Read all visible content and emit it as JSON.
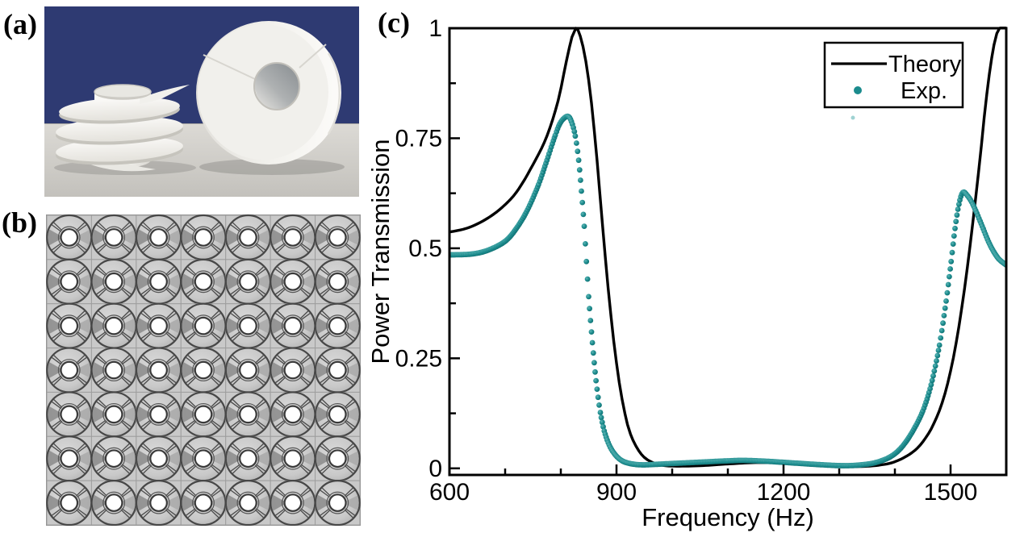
{
  "figure": {
    "background_color": "#ffffff",
    "panel_a": {
      "label": "(a)",
      "kind": "photograph",
      "content": "3D-printed helical resonator and ring resonator on a table",
      "photo_background_color": "#2e3a72",
      "table_color": "#cfcdc8",
      "object_color": "#f2f1ed"
    },
    "panel_b": {
      "label": "(b)",
      "kind": "schematic-array",
      "grid_rows": 7,
      "grid_cols": 7,
      "cell_color": "#c9c9c9",
      "line_color": "#474747",
      "hole_color": "#ffffff"
    },
    "panel_c": {
      "label": "(c)",
      "kind": "chart"
    }
  },
  "chart_data": {
    "type": "line",
    "title": "",
    "xlabel": "Frequency (Hz)",
    "ylabel": "Power Transmission",
    "xlim": [
      600,
      1600
    ],
    "ylim": [
      -0.015,
      1.0
    ],
    "x_major_ticks": [
      600,
      900,
      1200,
      1500
    ],
    "x_minor_ticks": [
      700,
      800,
      1000,
      1100,
      1300,
      1400
    ],
    "y_major_ticks": [
      0,
      0.25,
      0.5,
      0.75,
      1
    ],
    "y_major_tick_labels": [
      "0",
      "0.25",
      "0.5",
      "0.75",
      "1"
    ],
    "y_minor_ticks": [
      0.125,
      0.375,
      0.625,
      0.875
    ],
    "grid": false,
    "legend": {
      "position": "top-right",
      "entries": [
        {
          "label": "Theory",
          "marker": "line",
          "color": "#000000"
        },
        {
          "label": "Exp.",
          "marker": "dot",
          "color": "#1b8b8d"
        }
      ]
    },
    "series": [
      {
        "name": "Theory",
        "type": "line",
        "color": "#000000",
        "points": [
          [
            600,
            0.537
          ],
          [
            630,
            0.545
          ],
          [
            660,
            0.562
          ],
          [
            690,
            0.588
          ],
          [
            720,
            0.627
          ],
          [
            750,
            0.69
          ],
          [
            775,
            0.755
          ],
          [
            795,
            0.835
          ],
          [
            810,
            0.925
          ],
          [
            820,
            0.98
          ],
          [
            827,
            1.0
          ],
          [
            835,
            0.982
          ],
          [
            845,
            0.925
          ],
          [
            855,
            0.83
          ],
          [
            865,
            0.7
          ],
          [
            875,
            0.55
          ],
          [
            885,
            0.41
          ],
          [
            895,
            0.29
          ],
          [
            905,
            0.195
          ],
          [
            915,
            0.125
          ],
          [
            925,
            0.078
          ],
          [
            940,
            0.04
          ],
          [
            955,
            0.02
          ],
          [
            975,
            0.009
          ],
          [
            1000,
            0.005
          ],
          [
            1050,
            0.006
          ],
          [
            1100,
            0.01
          ],
          [
            1150,
            0.013
          ],
          [
            1200,
            0.012
          ],
          [
            1250,
            0.008
          ],
          [
            1300,
            0.005
          ],
          [
            1335,
            0.004
          ],
          [
            1370,
            0.007
          ],
          [
            1400,
            0.015
          ],
          [
            1430,
            0.035
          ],
          [
            1450,
            0.06
          ],
          [
            1470,
            0.102
          ],
          [
            1490,
            0.17
          ],
          [
            1510,
            0.285
          ],
          [
            1530,
            0.455
          ],
          [
            1550,
            0.67
          ],
          [
            1565,
            0.85
          ],
          [
            1578,
            0.962
          ],
          [
            1588,
            1.0
          ],
          [
            1600,
            1.0
          ]
        ]
      },
      {
        "name": "Exp.",
        "type": "scatter",
        "color": "#1b8b8d",
        "points": [
          [
            600,
            0.485
          ],
          [
            640,
            0.487
          ],
          [
            670,
            0.496
          ],
          [
            700,
            0.516
          ],
          [
            720,
            0.545
          ],
          [
            740,
            0.587
          ],
          [
            760,
            0.645
          ],
          [
            775,
            0.7
          ],
          [
            790,
            0.757
          ],
          [
            800,
            0.787
          ],
          [
            812,
            0.8
          ],
          [
            819,
            0.788
          ],
          [
            826,
            0.755
          ],
          [
            832,
            0.7
          ],
          [
            837,
            0.63
          ],
          [
            842,
            0.55
          ],
          [
            846,
            0.47
          ],
          [
            850,
            0.39
          ],
          [
            855,
            0.31
          ],
          [
            860,
            0.24
          ],
          [
            865,
            0.18
          ],
          [
            871,
            0.127
          ],
          [
            878,
            0.085
          ],
          [
            887,
            0.053
          ],
          [
            897,
            0.032
          ],
          [
            909,
            0.018
          ],
          [
            924,
            0.011
          ],
          [
            944,
            0.008
          ],
          [
            970,
            0.009
          ],
          [
            1000,
            0.011
          ],
          [
            1050,
            0.014
          ],
          [
            1100,
            0.017
          ],
          [
            1130,
            0.018
          ],
          [
            1170,
            0.016
          ],
          [
            1220,
            0.012
          ],
          [
            1270,
            0.008
          ],
          [
            1310,
            0.006
          ],
          [
            1340,
            0.008
          ],
          [
            1365,
            0.013
          ],
          [
            1390,
            0.025
          ],
          [
            1410,
            0.045
          ],
          [
            1430,
            0.08
          ],
          [
            1450,
            0.13
          ],
          [
            1465,
            0.19
          ],
          [
            1480,
            0.28
          ],
          [
            1492,
            0.38
          ],
          [
            1501,
            0.47
          ],
          [
            1508,
            0.545
          ],
          [
            1515,
            0.6
          ],
          [
            1522,
            0.627
          ],
          [
            1530,
            0.62
          ],
          [
            1540,
            0.6
          ],
          [
            1555,
            0.556
          ],
          [
            1570,
            0.51
          ],
          [
            1585,
            0.478
          ],
          [
            1600,
            0.462
          ]
        ]
      }
    ]
  }
}
